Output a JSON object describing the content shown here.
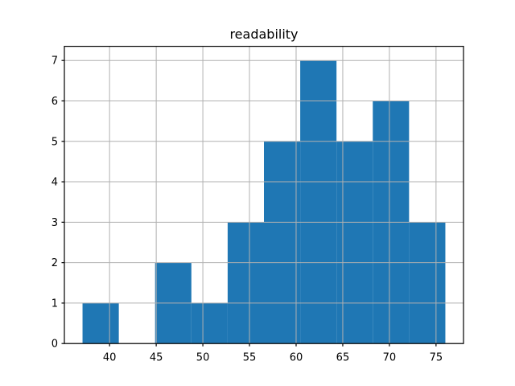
{
  "chart_data": {
    "type": "bar",
    "subtype": "histogram",
    "title": "readability",
    "xlabel": "",
    "ylabel": "",
    "bin_edges": [
      37.1,
      40.99,
      44.88,
      48.77,
      52.66,
      56.55,
      60.44,
      64.33,
      68.22,
      72.11,
      76.0
    ],
    "values": [
      1,
      0,
      2,
      1,
      3,
      5,
      7,
      5,
      6,
      3
    ],
    "xticks": [
      40,
      45,
      50,
      55,
      60,
      65,
      70,
      75
    ],
    "yticks": [
      0,
      1,
      2,
      3,
      4,
      5,
      6,
      7
    ],
    "xlim": [
      35.155,
      77.945
    ],
    "ylim": [
      0,
      7.35
    ],
    "grid": true,
    "grid_over_bars": true,
    "legend": "none",
    "colors": {
      "bar": "#1f77b4",
      "grid": "#b0b0b0",
      "spine": "#000000",
      "tick": "#000000",
      "text": "#000000",
      "background": "#ffffff"
    }
  }
}
